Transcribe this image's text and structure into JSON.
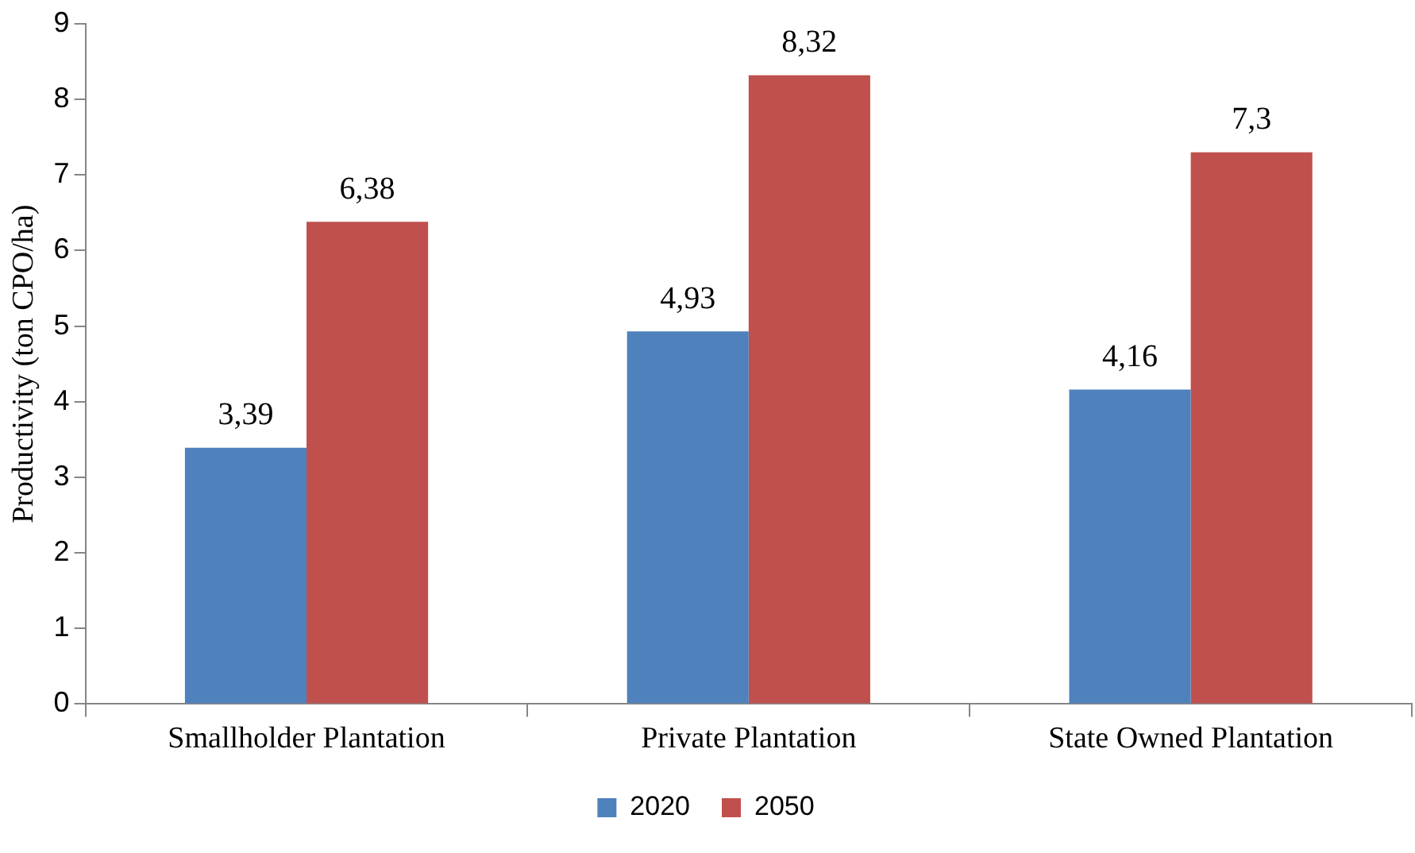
{
  "chart_data": {
    "type": "bar",
    "ylabel": "Productivity (ton CPO/ha)",
    "categories": [
      "Smallholder Plantation",
      "Private Plantation",
      "State Owned Plantation"
    ],
    "series": [
      {
        "name": "2020",
        "color": "#4f81bd",
        "values": [
          3.39,
          4.93,
          4.16
        ],
        "value_labels": [
          "3,39",
          "4,93",
          "4,16"
        ]
      },
      {
        "name": "2050",
        "color": "#c0504d",
        "values": [
          6.38,
          8.32,
          7.3
        ],
        "value_labels": [
          "6,38",
          "8,32",
          "7,3"
        ]
      }
    ],
    "ylim": [
      0,
      9
    ],
    "yticks": [
      0,
      1,
      2,
      3,
      4,
      5,
      6,
      7,
      8,
      9
    ],
    "grid": false,
    "legend": "bottom"
  }
}
